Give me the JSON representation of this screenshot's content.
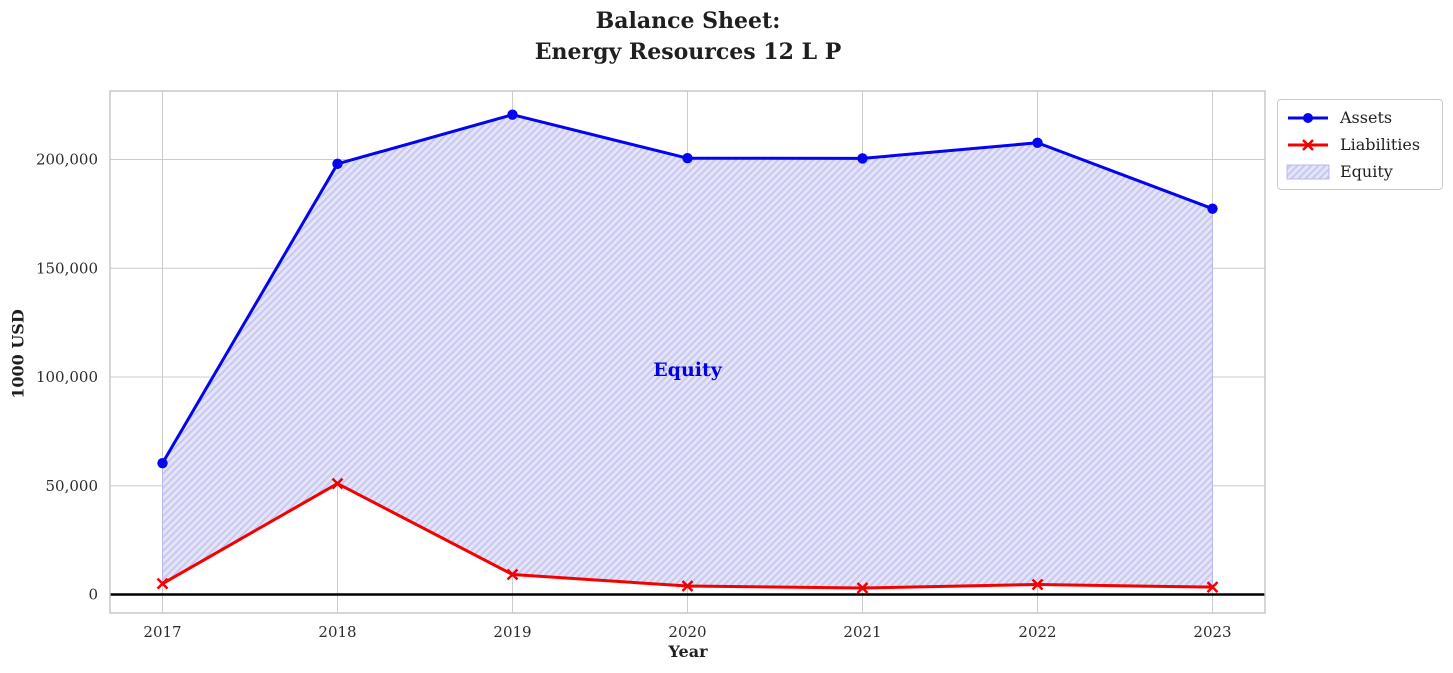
{
  "chart_data": {
    "type": "line",
    "title_lines": [
      "Balance Sheet:",
      "Energy Resources 12 L P"
    ],
    "xlabel": "Year",
    "ylabel": "1000 USD",
    "categories": [
      "2017",
      "2018",
      "2019",
      "2020",
      "2021",
      "2022",
      "2023"
    ],
    "series": [
      {
        "name": "Assets",
        "marker": "circle",
        "color": "#0404ee",
        "values": [
          60400,
          198000,
          220600,
          200600,
          200500,
          207700,
          177400
        ]
      },
      {
        "name": "Liabilities",
        "marker": "x",
        "color": "#f40000",
        "values": [
          5000,
          51000,
          9200,
          3900,
          3000,
          4600,
          3400
        ]
      }
    ],
    "area": {
      "name": "Equity",
      "between": [
        "Assets",
        "Liabilities"
      ],
      "fill": "#e4e4f9",
      "hatch": "diagonal",
      "hatch_color": "#c8c8f0",
      "edge_color": "#b9b9ea"
    },
    "annotation": {
      "text": "Equity",
      "x": 2020,
      "y": 103000,
      "color": "#0000e0"
    },
    "legend": {
      "position": "upper right outside",
      "items": [
        "Assets",
        "Liabilities",
        "Equity"
      ]
    },
    "y_ticks": [
      {
        "value": 0,
        "label": "0"
      },
      {
        "value": 50000,
        "label": "50,000"
      },
      {
        "value": 100000,
        "label": "100,000"
      },
      {
        "value": 150000,
        "label": "150,000"
      },
      {
        "value": 200000,
        "label": "200,000"
      }
    ],
    "xlim": [
      2016.7,
      2023.3
    ],
    "ylim": [
      -8500,
      231500
    ],
    "grid": true,
    "grid_color": "#cccccc",
    "spine_color": "#c4c4c4",
    "zero_line": {
      "y": 0,
      "color": "#000000"
    },
    "tick_color": "#2b2b2b"
  }
}
